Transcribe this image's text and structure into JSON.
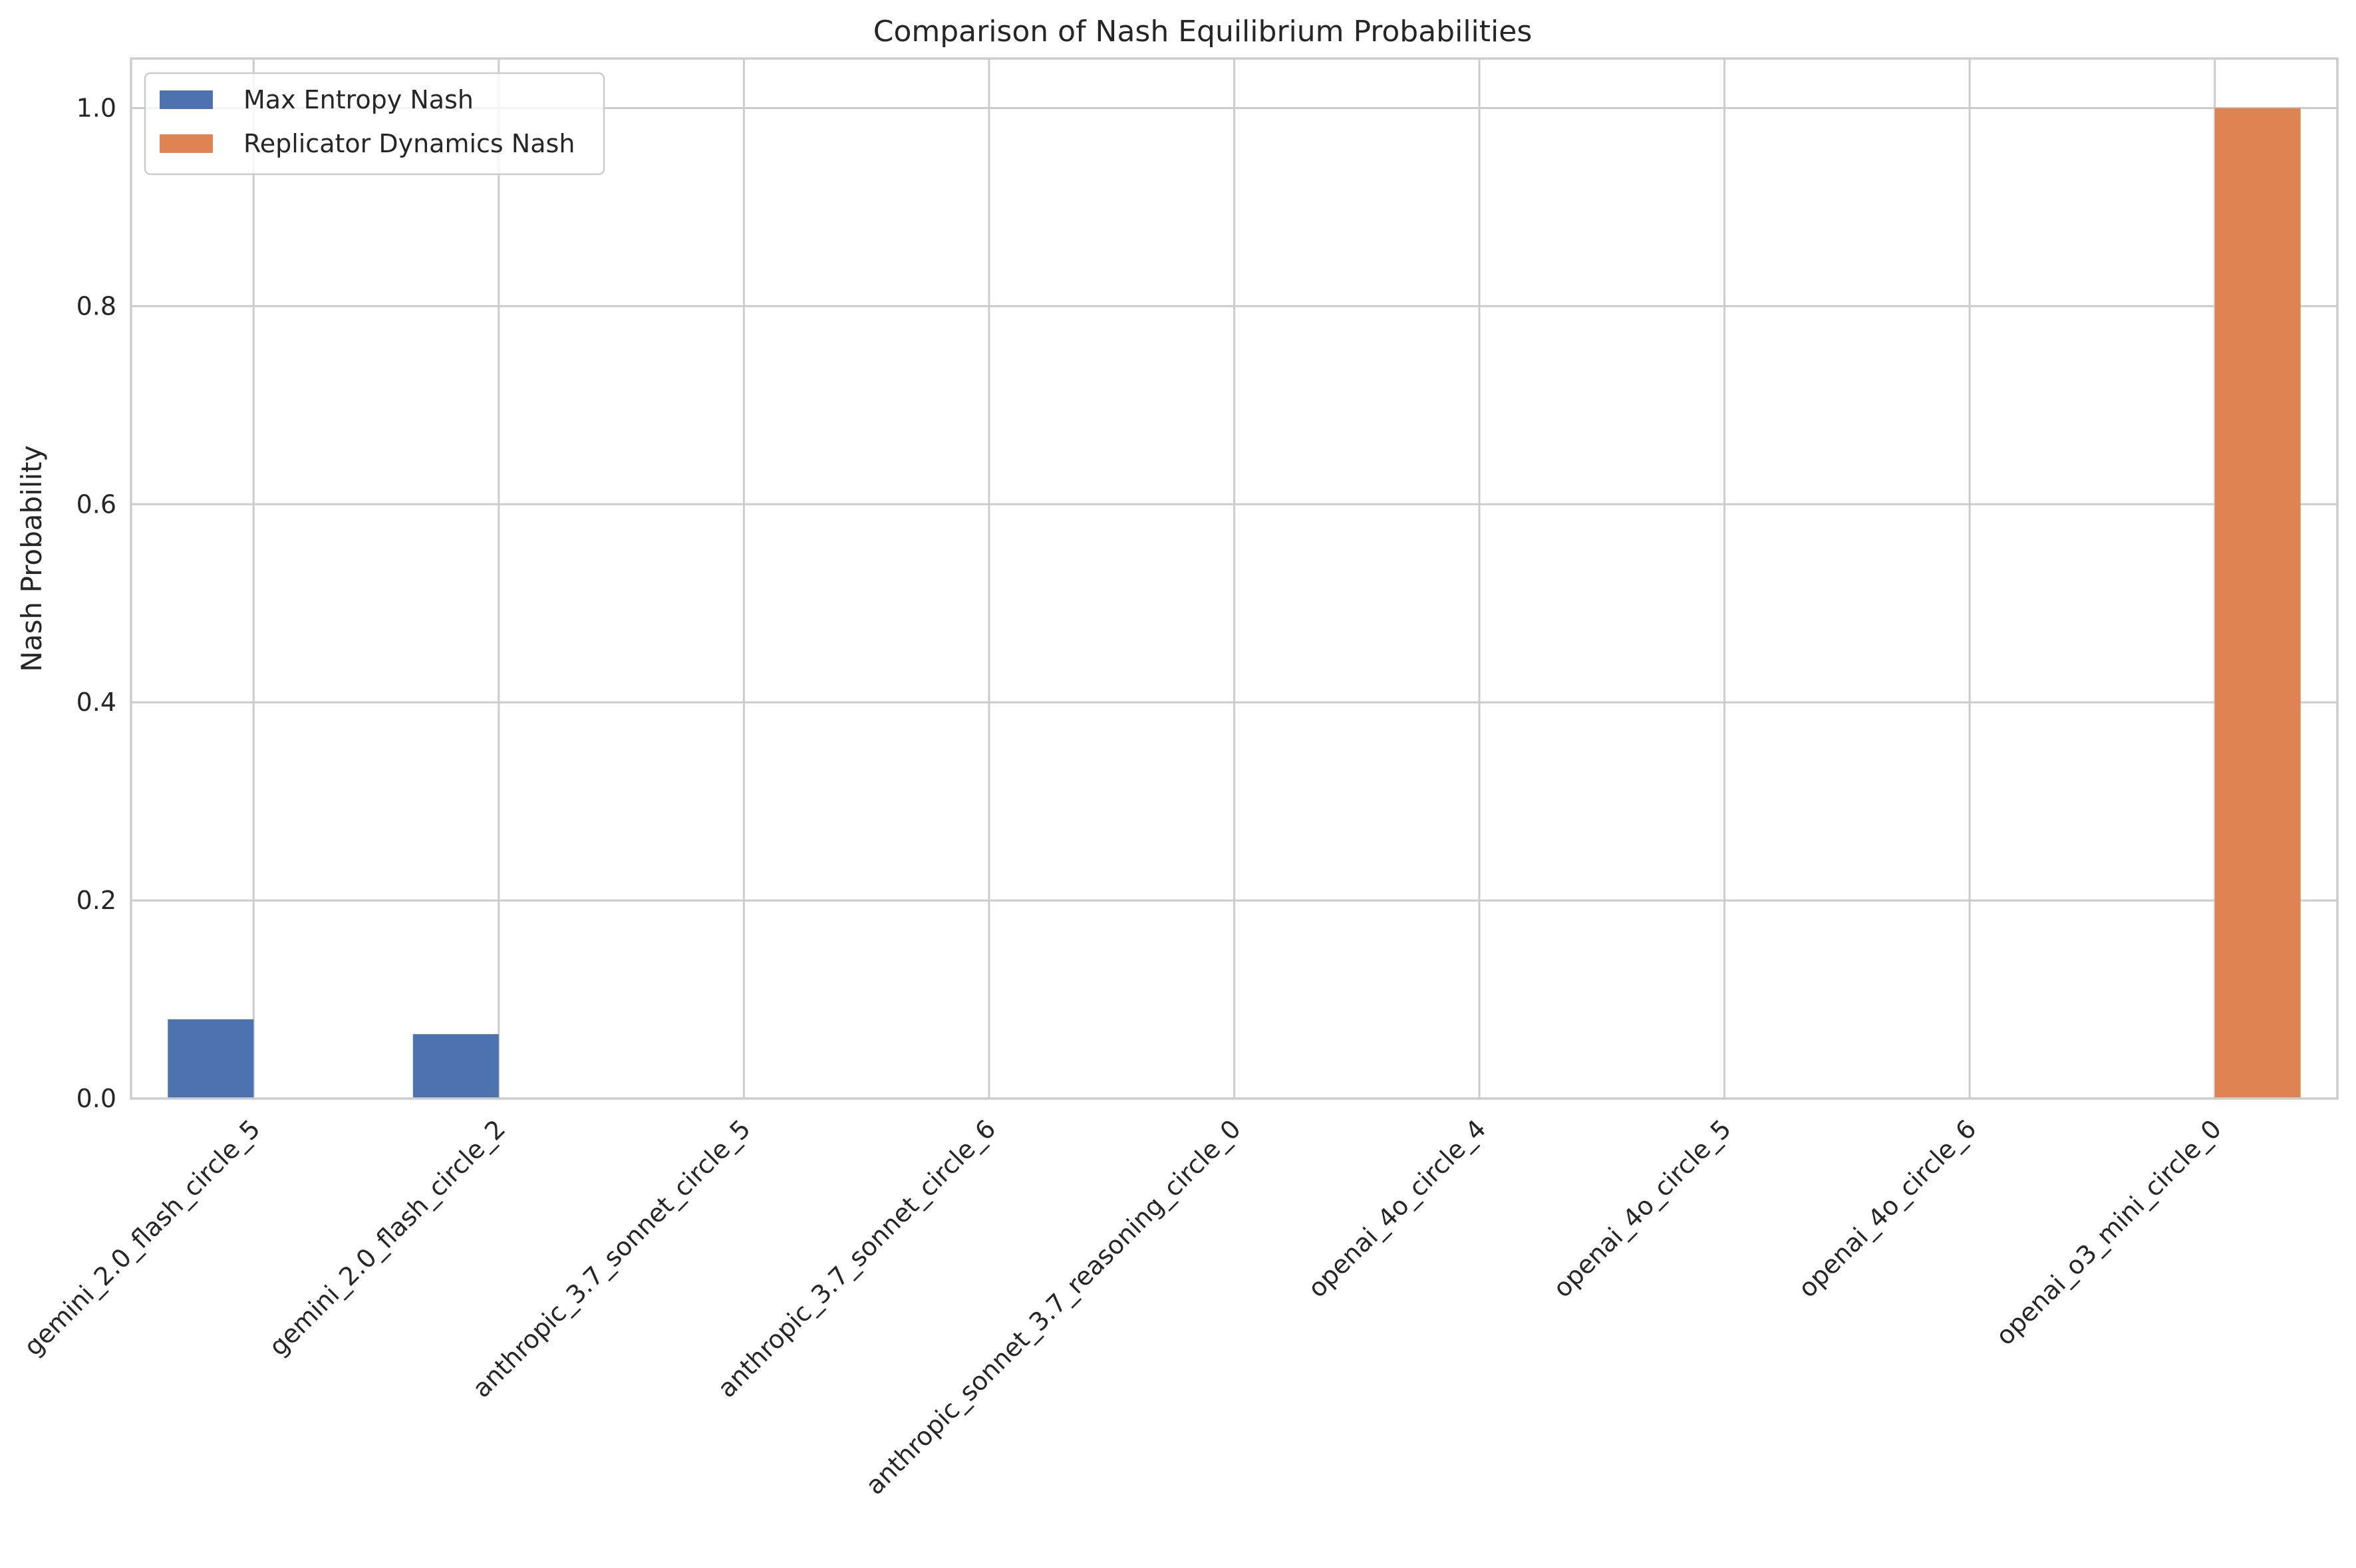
{
  "chart_data": {
    "type": "bar",
    "title": "Comparison of Nash Equilibrium Probabilities",
    "xlabel": "",
    "ylabel": "Nash Probability",
    "categories": [
      "gemini_2.0_flash_circle_5",
      "gemini_2.0_flash_circle_2",
      "anthropic_3.7_sonnet_circle_5",
      "anthropic_3.7_sonnet_circle_6",
      "anthropic_sonnet_3.7_reasoning_circle_0",
      "openai_4o_circle_4",
      "openai_4o_circle_5",
      "openai_4o_circle_6",
      "openai_o3_mini_circle_0"
    ],
    "series": [
      {
        "name": "Max Entropy Nash",
        "color": "#4c72b0",
        "values": [
          0.08,
          0.065,
          0,
          0,
          0,
          0,
          0,
          0,
          0
        ]
      },
      {
        "name": "Replicator Dynamics Nash",
        "color": "#dd8452",
        "values": [
          0,
          0,
          0,
          0,
          0,
          0,
          0,
          0,
          1.0
        ]
      }
    ],
    "ylim": [
      0,
      1.05
    ],
    "yticks": [
      "0.0",
      "0.2",
      "0.4",
      "0.6",
      "0.8",
      "1.0"
    ],
    "grid": true,
    "legend_position": "top-left"
  }
}
